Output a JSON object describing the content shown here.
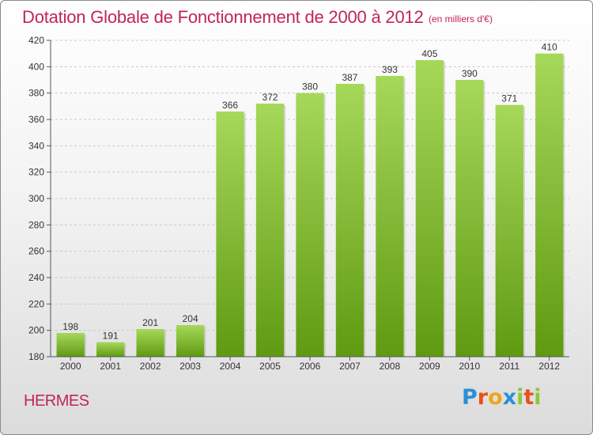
{
  "title": "Dotation Globale de Fonctionnement de 2000 à 2012",
  "unit_note": "(en milliers d'€)",
  "commune": "HERMES",
  "logo": {
    "letters": [
      "P",
      "r",
      "o",
      "x",
      "i",
      "t",
      "i"
    ],
    "colors": [
      "#2a8fd8",
      "#e8501d",
      "#f2a51a",
      "#2a8fd8",
      "#8cc63f",
      "#e8501d",
      "#8cc63f"
    ]
  },
  "colors": {
    "title": "#c0245c",
    "bar_top": "#a6d85a",
    "bar_bottom": "#5f9a12",
    "grid": "#c9c9c9"
  },
  "chart_data": {
    "type": "bar",
    "categories": [
      "2000",
      "2001",
      "2002",
      "2003",
      "2004",
      "2005",
      "2006",
      "2007",
      "2008",
      "2009",
      "2010",
      "2011",
      "2012"
    ],
    "values": [
      198,
      191,
      201,
      204,
      366,
      372,
      380,
      387,
      393,
      405,
      390,
      371,
      410
    ],
    "ylim": [
      180,
      420
    ],
    "yticks": [
      180,
      200,
      220,
      240,
      260,
      280,
      300,
      320,
      340,
      360,
      380,
      400,
      420
    ],
    "grid": true,
    "grid_style": "dashed horizontal",
    "xlabel": "",
    "ylabel": ""
  }
}
